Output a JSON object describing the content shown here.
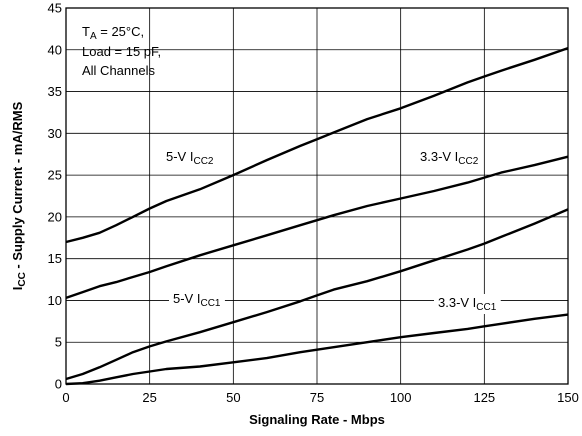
{
  "chart_data": {
    "type": "line",
    "xlabel": "Signaling Rate - Mbps",
    "ylabel_main": "I",
    "ylabel_sub": "CC",
    "ylabel_rest": " - Supply Current - mA/RMS",
    "xlim": [
      0,
      150
    ],
    "ylim": [
      0,
      45
    ],
    "x_ticks": [
      0,
      25,
      50,
      75,
      100,
      125,
      150
    ],
    "y_ticks": [
      0,
      5,
      10,
      15,
      20,
      25,
      30,
      35,
      40,
      45
    ],
    "grid": true,
    "conditions": {
      "line1_main": "T",
      "line1_sub": "A",
      "line1_rest": " = 25°C,",
      "line2": "Load = 15 pF,",
      "line3": "All Channels"
    },
    "series": [
      {
        "label_main": "5-V I",
        "label_sub": "CC2",
        "x": [
          0,
          5,
          10,
          15,
          20,
          25,
          30,
          40,
          50,
          60,
          70,
          75,
          80,
          90,
          100,
          110,
          120,
          125,
          130,
          140,
          150
        ],
        "y": [
          17,
          17.5,
          18.1,
          19,
          20,
          21,
          21.9,
          23.3,
          25,
          26.8,
          28.5,
          29.3,
          30.1,
          31.7,
          33,
          34.5,
          36.1,
          36.8,
          37.5,
          38.8,
          40.2
        ]
      },
      {
        "label_main": "3.3-V I",
        "label_sub": "CC2",
        "x": [
          0,
          5,
          10,
          15,
          20,
          25,
          30,
          40,
          50,
          60,
          70,
          75,
          80,
          90,
          100,
          110,
          120,
          125,
          130,
          140,
          150
        ],
        "y": [
          10.3,
          11,
          11.7,
          12.2,
          12.8,
          13.4,
          14.1,
          15.4,
          16.6,
          17.8,
          19,
          19.6,
          20.2,
          21.3,
          22.2,
          23.1,
          24.1,
          24.7,
          25.3,
          26.2,
          27.2
        ]
      },
      {
        "label_main": "5-V I",
        "label_sub": "CC1",
        "x": [
          0,
          5,
          10,
          15,
          20,
          25,
          30,
          40,
          50,
          60,
          70,
          75,
          80,
          90,
          100,
          110,
          120,
          125,
          130,
          140,
          150
        ],
        "y": [
          0.6,
          1.2,
          2,
          2.9,
          3.8,
          4.5,
          5.1,
          6.2,
          7.4,
          8.6,
          9.9,
          10.6,
          11.3,
          12.3,
          13.5,
          14.8,
          16.1,
          16.8,
          17.6,
          19.2,
          20.9
        ]
      },
      {
        "label_main": "3.3-V I",
        "label_sub": "CC1",
        "x": [
          0,
          5,
          10,
          15,
          20,
          25,
          30,
          40,
          50,
          60,
          70,
          75,
          80,
          90,
          100,
          110,
          120,
          125,
          130,
          140,
          150
        ],
        "y": [
          0,
          0.1,
          0.4,
          0.8,
          1.2,
          1.5,
          1.8,
          2.1,
          2.6,
          3.1,
          3.8,
          4.1,
          4.4,
          5,
          5.6,
          6.1,
          6.6,
          6.9,
          7.2,
          7.8,
          8.3
        ]
      }
    ]
  }
}
